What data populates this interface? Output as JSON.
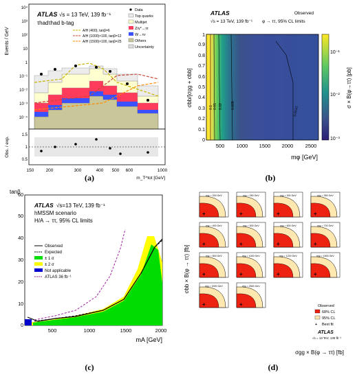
{
  "captions": {
    "a": "(a)",
    "b": "(b)",
    "c": "(c)",
    "d": "(d)"
  },
  "panel_a": {
    "atlas": "ATLAS",
    "energy": "√s = 13 TeV, 139 fb⁻¹",
    "channel": "τhadτhad b-tag",
    "ylabel_top": "Events / GeV",
    "ylabel_bottom": "Obs. / exp.",
    "xlabel": "m_T^tot [GeV]",
    "legend_left": [
      "A/H (400), tanβ=6",
      "A/H (1000)×100, tanβ=12",
      "A/H (1500)×100, tanβ=25"
    ],
    "legend_right": [
      "Data",
      "Top quarks",
      "Multijet",
      "Z/γ*→ττ",
      "W→τν",
      "Others",
      "Uncertainty"
    ],
    "yticks_top": [
      "10⁴",
      "10³",
      "10²",
      "10",
      "1",
      "10⁻¹",
      "10⁻²",
      "10⁻³",
      "10⁻⁴"
    ],
    "yticks_bottom": [
      "1.5",
      "1",
      "0.5"
    ],
    "xticks": [
      "150",
      "200",
      "300",
      "400",
      "500",
      "600",
      "1000"
    ],
    "colors": {
      "top": "#ececec",
      "multijet": "#ffffd0",
      "ztt": "#ff3b5c",
      "wtv": "#3b50ff",
      "others": "#c9c79a"
    }
  },
  "panel_b": {
    "atlas": "ATLAS",
    "observed": "Observed",
    "energy": "√s = 13 TeV, 139 fb⁻¹",
    "channel": "φ → ττ, 95% CL limits",
    "ylabel": "σbb/[σgg + σbb]",
    "xlabel": "mφ [GeV]",
    "zlabel": "σ × B(φ→ττ) [pb]",
    "xticks": [
      "500",
      "1000",
      "1500",
      "2000",
      "2500"
    ],
    "yticks": [
      "0",
      "0.1",
      "0.2",
      "0.3",
      "0.4",
      "0.5",
      "0.6",
      "0.7",
      "0.8",
      "0.9",
      "1"
    ],
    "zticks": [
      "10⁻¹",
      "10⁻²",
      "10⁻³"
    ],
    "contours": [
      "0.1",
      "0.05",
      "0.02",
      "0.005",
      "0.0012"
    ]
  },
  "panel_c": {
    "atlas": "ATLAS",
    "energy": "√s=13 TeV, 139 fb⁻¹",
    "scenario": "hMSSM scenario",
    "channel": "H/A → ττ, 95% CL limits",
    "ylabel": "tanβ",
    "xlabel": "mA [GeV]",
    "xticks": [
      "500",
      "1000",
      "1500",
      "2000"
    ],
    "yticks": [
      "0",
      "10",
      "20",
      "30",
      "40",
      "50",
      "60"
    ],
    "legend": [
      "Observed",
      "Expected",
      "± 1 σ",
      "± 2 σ",
      "Not applicable",
      "ATLAS 36 fb⁻¹"
    ]
  },
  "panel_d": {
    "ylabel": "σbb × B(φ → ττ) [fb]",
    "xlabel": "σgg × B(φ → ττ) [fb]",
    "masses": [
      "mφ = 200 GeV",
      "mφ = 250 GeV",
      "mφ = 300 GeV",
      "mφ = 350 GeV",
      "mφ = 400 GeV",
      "mφ = 500 GeV",
      "mφ = 600 GeV",
      "mφ = 700 GeV",
      "mφ = 800 GeV",
      "mφ = 1000 GeV",
      "mφ = 1200 GeV",
      "mφ = 1500 GeV",
      "mφ = 2000 GeV",
      "mφ = 2500 GeV"
    ],
    "legend": [
      "Observed",
      "68% CL",
      "95% CL",
      "Best fit"
    ],
    "atlas": "ATLAS",
    "energy": "√s = 13 TeV, 139 fb⁻¹"
  }
}
